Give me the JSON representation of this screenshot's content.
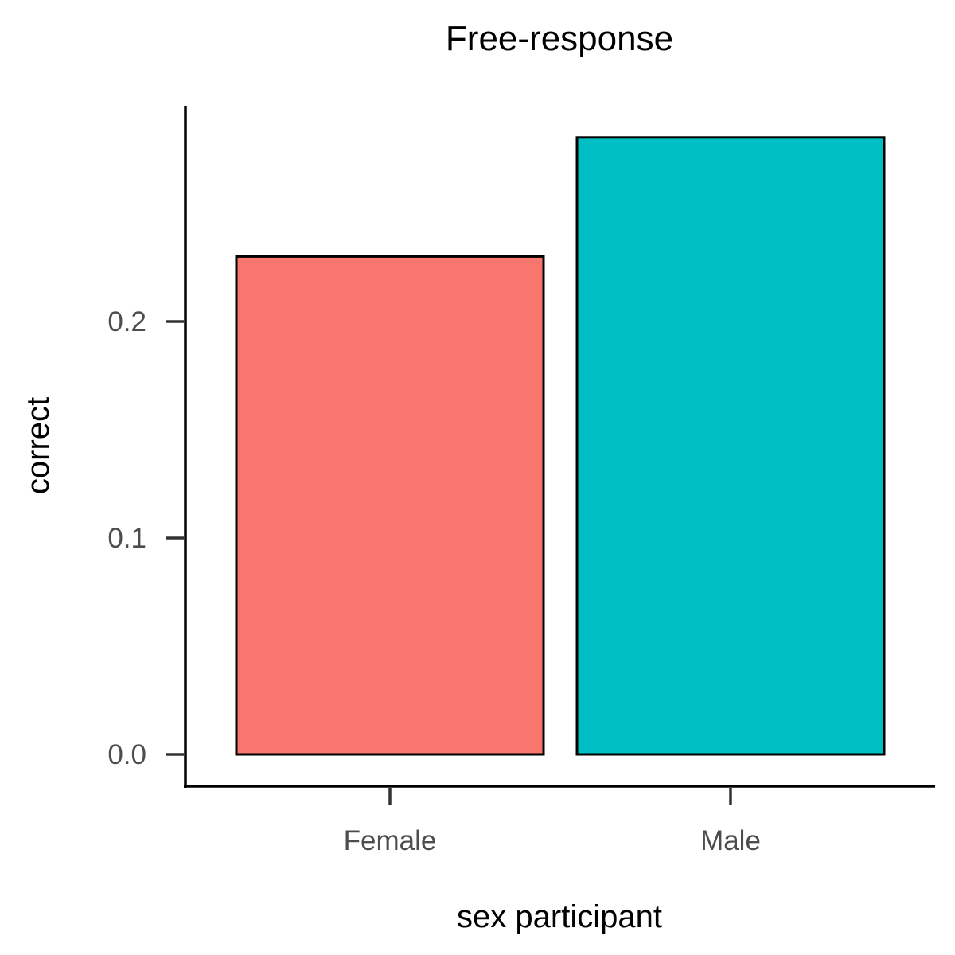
{
  "chart_data": {
    "type": "bar",
    "title": "Free-response",
    "xlabel": "sex participant",
    "ylabel": "correct",
    "categories": [
      "Female",
      "Male"
    ],
    "values": [
      0.23,
      0.285
    ],
    "colors": [
      "#F8766D",
      "#00BFC4"
    ],
    "ylim": [
      -0.015,
      0.3
    ],
    "yticks": [
      0.0,
      0.1,
      0.2
    ],
    "ytick_labels": [
      "0.0",
      "0.1",
      "0.2"
    ],
    "grid": false,
    "legend": "none"
  }
}
